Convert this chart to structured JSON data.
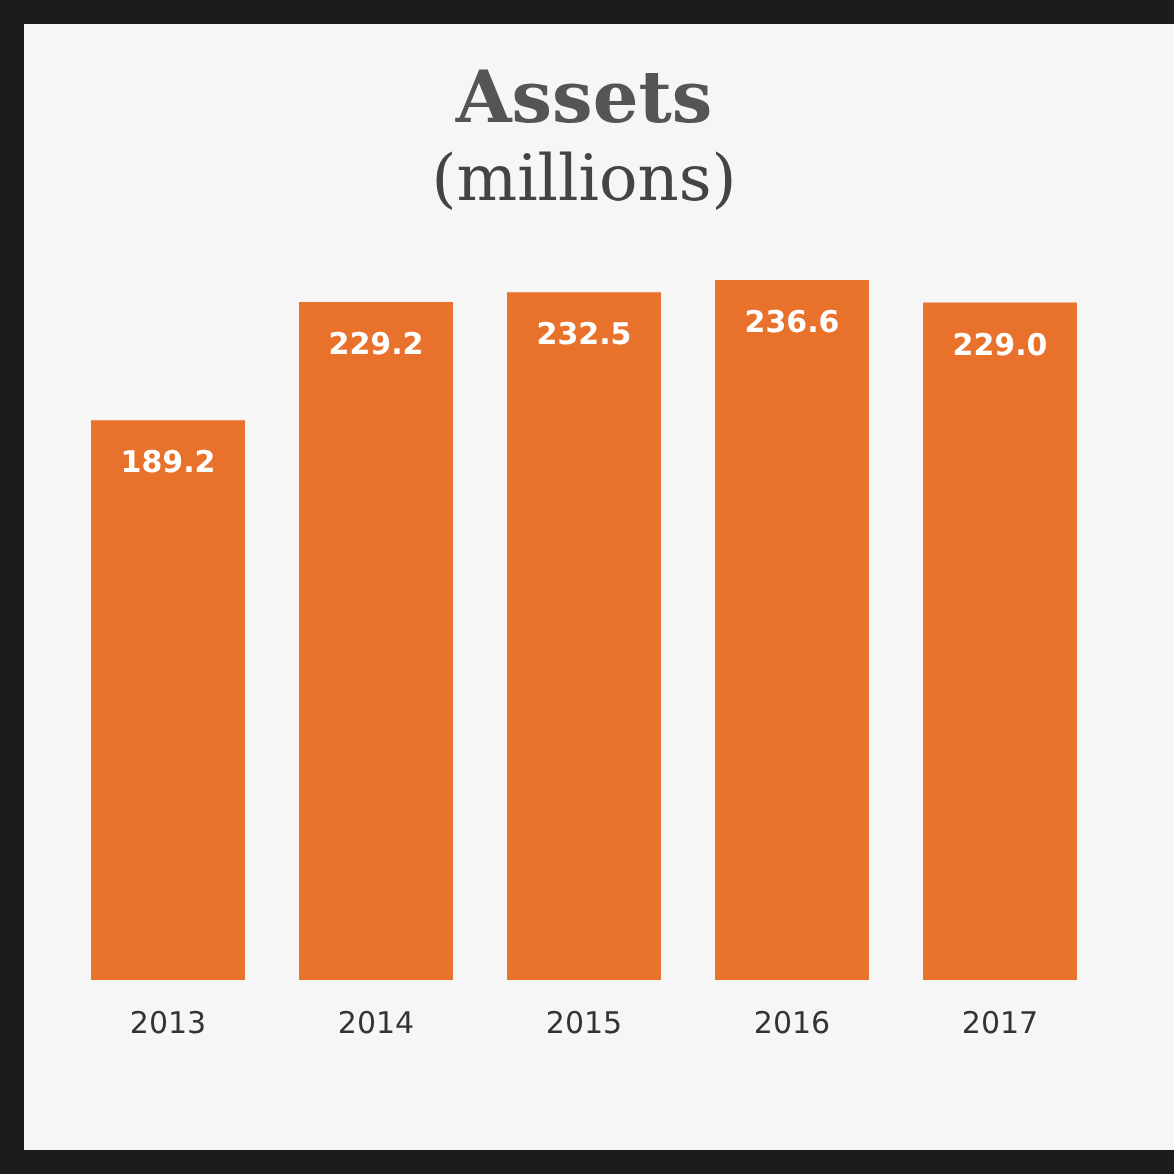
{
  "chart_data": {
    "type": "bar",
    "title": "Assets",
    "subtitle": "(millions)",
    "categories": [
      "2013",
      "2014",
      "2015",
      "2016",
      "2017"
    ],
    "values": [
      189.2,
      229.2,
      232.5,
      236.6,
      229.0
    ],
    "value_labels": [
      "189.2",
      "229.2",
      "232.5",
      "236.6",
      "229.0"
    ],
    "color": "#e8722c",
    "tick_labels": "x"
  }
}
